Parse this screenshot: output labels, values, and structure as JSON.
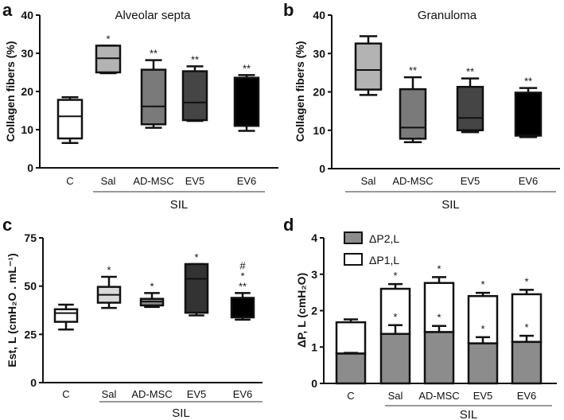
{
  "chart_data": [
    {
      "panel": "a",
      "type": "box",
      "title": "Alveolar septa",
      "ylabel": "Collagen fibers (%)",
      "ylim": [
        0,
        40
      ],
      "yticks": [
        0,
        10,
        20,
        30,
        40
      ],
      "group_label": "SIL",
      "categories": [
        "C",
        "Sal",
        "AD-MSC",
        "EV5",
        "EV6"
      ],
      "boxes": [
        {
          "min": 6.5,
          "q1": 7.7,
          "median": 13.5,
          "q3": 17.8,
          "max": 18.5,
          "color": "#ffffff",
          "sig": []
        },
        {
          "min": 24.8,
          "q1": 25.0,
          "median": 28.7,
          "q3": 32.0,
          "max": 32.0,
          "color": "#b3b3b3",
          "sig": [
            "*"
          ]
        },
        {
          "min": 10.5,
          "q1": 11.4,
          "median": 16.1,
          "q3": 25.7,
          "max": 28.2,
          "color": "#7a7a7a",
          "sig": [
            "**"
          ]
        },
        {
          "min": 12.3,
          "q1": 12.5,
          "median": 17.1,
          "q3": 25.3,
          "max": 26.6,
          "color": "#454545",
          "sig": [
            "**"
          ]
        },
        {
          "min": 9.7,
          "q1": 11.0,
          "median": 11.0,
          "q3": 23.6,
          "max": 24.3,
          "color": "#000000",
          "sig": [
            "**"
          ]
        }
      ]
    },
    {
      "panel": "b",
      "type": "box",
      "title": "Granuloma",
      "ylabel": "Collagen fibers (%)",
      "ylim": [
        0,
        40
      ],
      "yticks": [
        0,
        10,
        20,
        30,
        40
      ],
      "group_label": "SIL",
      "categories": [
        "Sal",
        "AD-MSC",
        "EV5",
        "EV6"
      ],
      "boxes": [
        {
          "min": 19.2,
          "q1": 20.6,
          "median": 25.7,
          "q3": 32.6,
          "max": 34.5,
          "color": "#b3b3b3",
          "sig": []
        },
        {
          "min": 6.9,
          "q1": 7.8,
          "median": 10.7,
          "q3": 20.7,
          "max": 23.8,
          "color": "#7a7a7a",
          "sig": [
            "**"
          ]
        },
        {
          "min": 9.5,
          "q1": 10.0,
          "median": 13.2,
          "q3": 21.3,
          "max": 23.5,
          "color": "#454545",
          "sig": [
            "**"
          ]
        },
        {
          "min": 8.2,
          "q1": 8.6,
          "median": 8.6,
          "q3": 19.8,
          "max": 21.0,
          "color": "#000000",
          "sig": [
            "**"
          ]
        }
      ]
    },
    {
      "panel": "c",
      "type": "box",
      "title": "",
      "ylabel": "Est, L (cmH₂O . mL⁻¹)",
      "ylim": [
        0,
        75
      ],
      "yticks": [
        0,
        25,
        50,
        75
      ],
      "group_label": "SIL",
      "categories": [
        "C",
        "Sal",
        "AD-MSC",
        "EV5",
        "EV6"
      ],
      "boxes": [
        {
          "min": 27.5,
          "q1": 31.5,
          "median": 36.0,
          "q3": 38.0,
          "max": 40.4,
          "color": "#ffffff",
          "sig": []
        },
        {
          "min": 38.7,
          "q1": 41.4,
          "median": 45.5,
          "q3": 49.6,
          "max": 54.8,
          "color": "#d9d9d9",
          "sig": [
            "*"
          ]
        },
        {
          "min": 39.2,
          "q1": 40.0,
          "median": 42.0,
          "q3": 43.4,
          "max": 46.4,
          "color": "#8a8a8a",
          "sig": [
            "*"
          ]
        },
        {
          "min": 34.8,
          "q1": 36.2,
          "median": 53.8,
          "q3": 61.4,
          "max": 61.4,
          "color": "#333333",
          "sig": [
            "*"
          ]
        },
        {
          "min": 32.6,
          "q1": 33.8,
          "median": 33.8,
          "q3": 43.9,
          "max": 46.4,
          "color": "#000000",
          "sig": [
            "**",
            "*",
            "#"
          ]
        }
      ]
    },
    {
      "panel": "d",
      "type": "stacked-bar",
      "title": "",
      "ylabel": "ΔP, L (cmH₂O)",
      "ylim": [
        0,
        4
      ],
      "yticks": [
        0,
        1,
        2,
        3,
        4
      ],
      "group_label": "SIL",
      "categories": [
        "C",
        "Sal",
        "AD-MSC",
        "EV5",
        "EV6"
      ],
      "legend": [
        {
          "name": "ΔP2,L",
          "color": "#8c8c8c"
        },
        {
          "name": "ΔP1,L",
          "color": "#ffffff"
        }
      ],
      "legend_position": "top-left",
      "series": [
        {
          "name": "ΔP2,L",
          "values": [
            0.82,
            1.36,
            1.41,
            1.1,
            1.14
          ],
          "error_top": [
            0.84,
            1.6,
            1.58,
            1.27,
            1.31
          ],
          "sig": [
            "",
            "*",
            "*",
            "*",
            "*"
          ]
        },
        {
          "name": "ΔP1,L (total)",
          "values": [
            1.68,
            2.6,
            2.76,
            2.4,
            2.45
          ],
          "error_top": [
            1.76,
            2.73,
            2.92,
            2.49,
            2.57
          ],
          "sig": [
            "",
            "*",
            "*",
            "*",
            "*"
          ]
        }
      ]
    }
  ]
}
